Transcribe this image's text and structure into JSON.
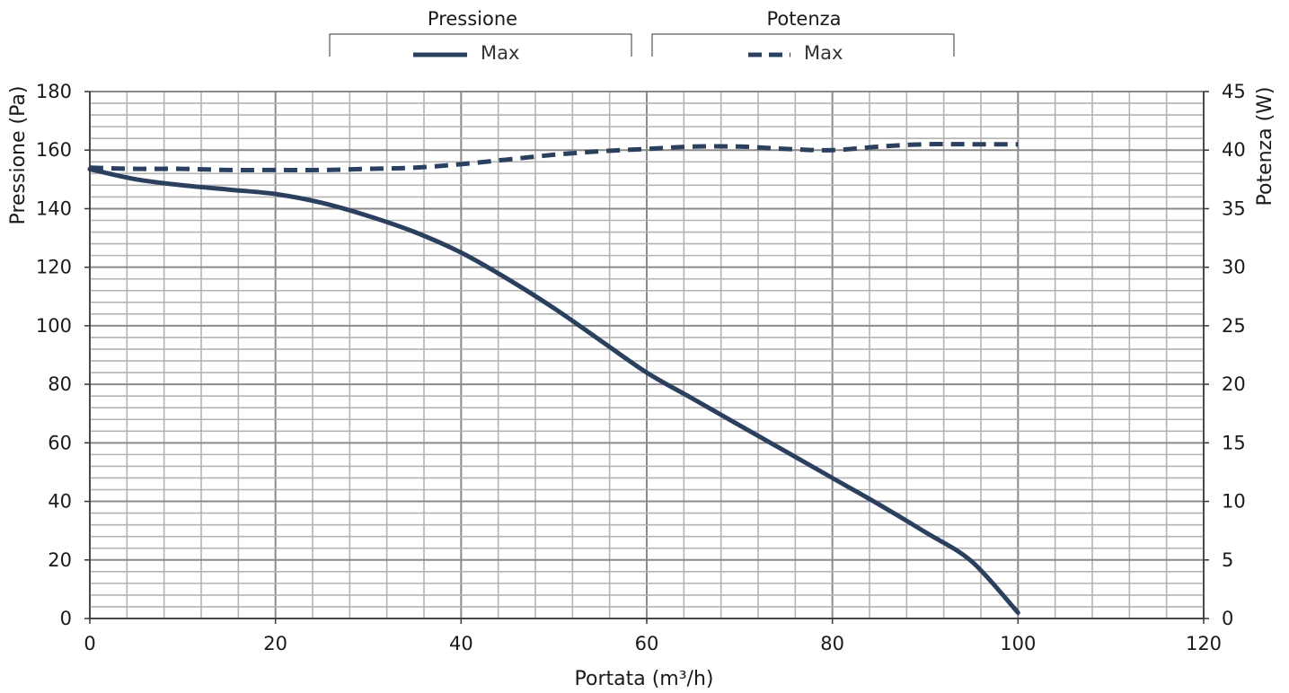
{
  "chart_data": {
    "type": "line",
    "xlabel": "Portata (m³/h)",
    "ylabel": "Pressione (Pa)",
    "y2label": "Potenza (W)",
    "xlim": [
      0,
      120
    ],
    "ylim": [
      0,
      180
    ],
    "y2lim": [
      0,
      45
    ],
    "x_ticks": [
      "0",
      "20",
      "40",
      "60",
      "80",
      "100",
      "120"
    ],
    "y_ticks": [
      "0",
      "20",
      "40",
      "60",
      "80",
      "100",
      "120",
      "140",
      "160",
      "180"
    ],
    "y2_ticks": [
      "0",
      "5",
      "10",
      "15",
      "20",
      "25",
      "30",
      "35",
      "40",
      "45"
    ],
    "grid": true,
    "legend_position": "top",
    "line_color": "#2b3f5e",
    "legend_groups": [
      {
        "title": "Pressione",
        "entries": [
          {
            "label": "Max",
            "style": "solid"
          }
        ]
      },
      {
        "title": "Potenza",
        "entries": [
          {
            "label": "Max",
            "style": "dashed"
          }
        ]
      }
    ],
    "series": [
      {
        "name": "Max",
        "group": "Pressione",
        "axis": "left",
        "style": "solid",
        "x": [
          0,
          5,
          10,
          15,
          20,
          25,
          30,
          35,
          40,
          45,
          50,
          55,
          60,
          65,
          70,
          75,
          80,
          85,
          90,
          95,
          100
        ],
        "y": [
          153.5,
          150,
          148,
          146.5,
          145,
          142,
          137.5,
          132,
          125,
          116,
          106,
          95,
          84,
          75,
          66,
          57,
          48,
          39,
          29.5,
          19.5,
          2
        ]
      },
      {
        "name": "Max",
        "group": "Potenza",
        "axis": "right",
        "style": "dashed",
        "x": [
          0,
          5,
          10,
          15,
          20,
          25,
          30,
          35,
          40,
          45,
          50,
          55,
          60,
          65,
          70,
          75,
          80,
          85,
          90,
          95,
          100
        ],
        "y": [
          38.5,
          38.4,
          38.4,
          38.3,
          38.3,
          38.3,
          38.4,
          38.5,
          38.8,
          39.2,
          39.6,
          39.9,
          40.1,
          40.3,
          40.3,
          40.1,
          40.0,
          40.3,
          40.5,
          40.5,
          40.5
        ]
      }
    ]
  }
}
